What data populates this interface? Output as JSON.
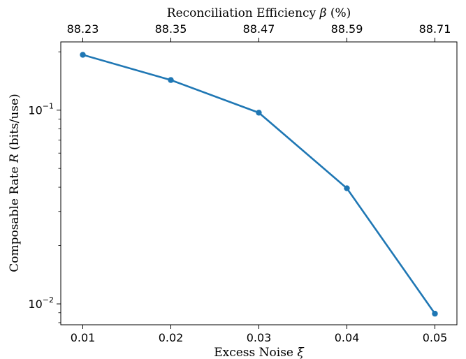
{
  "chart_data": {
    "type": "line",
    "xlabel": "Excess Noise",
    "xlabel_symbol": "ξ",
    "ylabel": "Composable Rate",
    "ylabel_symbol": "R",
    "ylabel_unit": "(bits/use)",
    "top_xlabel": "Reconciliation Efficiency",
    "top_xlabel_symbol": "β",
    "top_xlabel_unit": "(%)",
    "x": [
      0.01,
      0.02,
      0.03,
      0.04,
      0.05
    ],
    "x_tick_labels": [
      "0.01",
      "0.02",
      "0.03",
      "0.04",
      "0.05"
    ],
    "top_x_tick_labels": [
      "88.23",
      "88.35",
      "88.47",
      "88.59",
      "88.71"
    ],
    "series": [
      {
        "values": [
          0.193,
          0.143,
          0.097,
          0.0395,
          0.0089
        ],
        "color": "#1f77b4"
      }
    ],
    "y_scale": "log",
    "y_major_ticks": [
      {
        "value": 0.1,
        "base": "10",
        "exp": "−1"
      },
      {
        "value": 0.01,
        "base": "10",
        "exp": "−2"
      }
    ],
    "xlim": [
      0.0075,
      0.0525
    ],
    "ylim": [
      0.0078,
      0.225
    ],
    "grid": false
  }
}
